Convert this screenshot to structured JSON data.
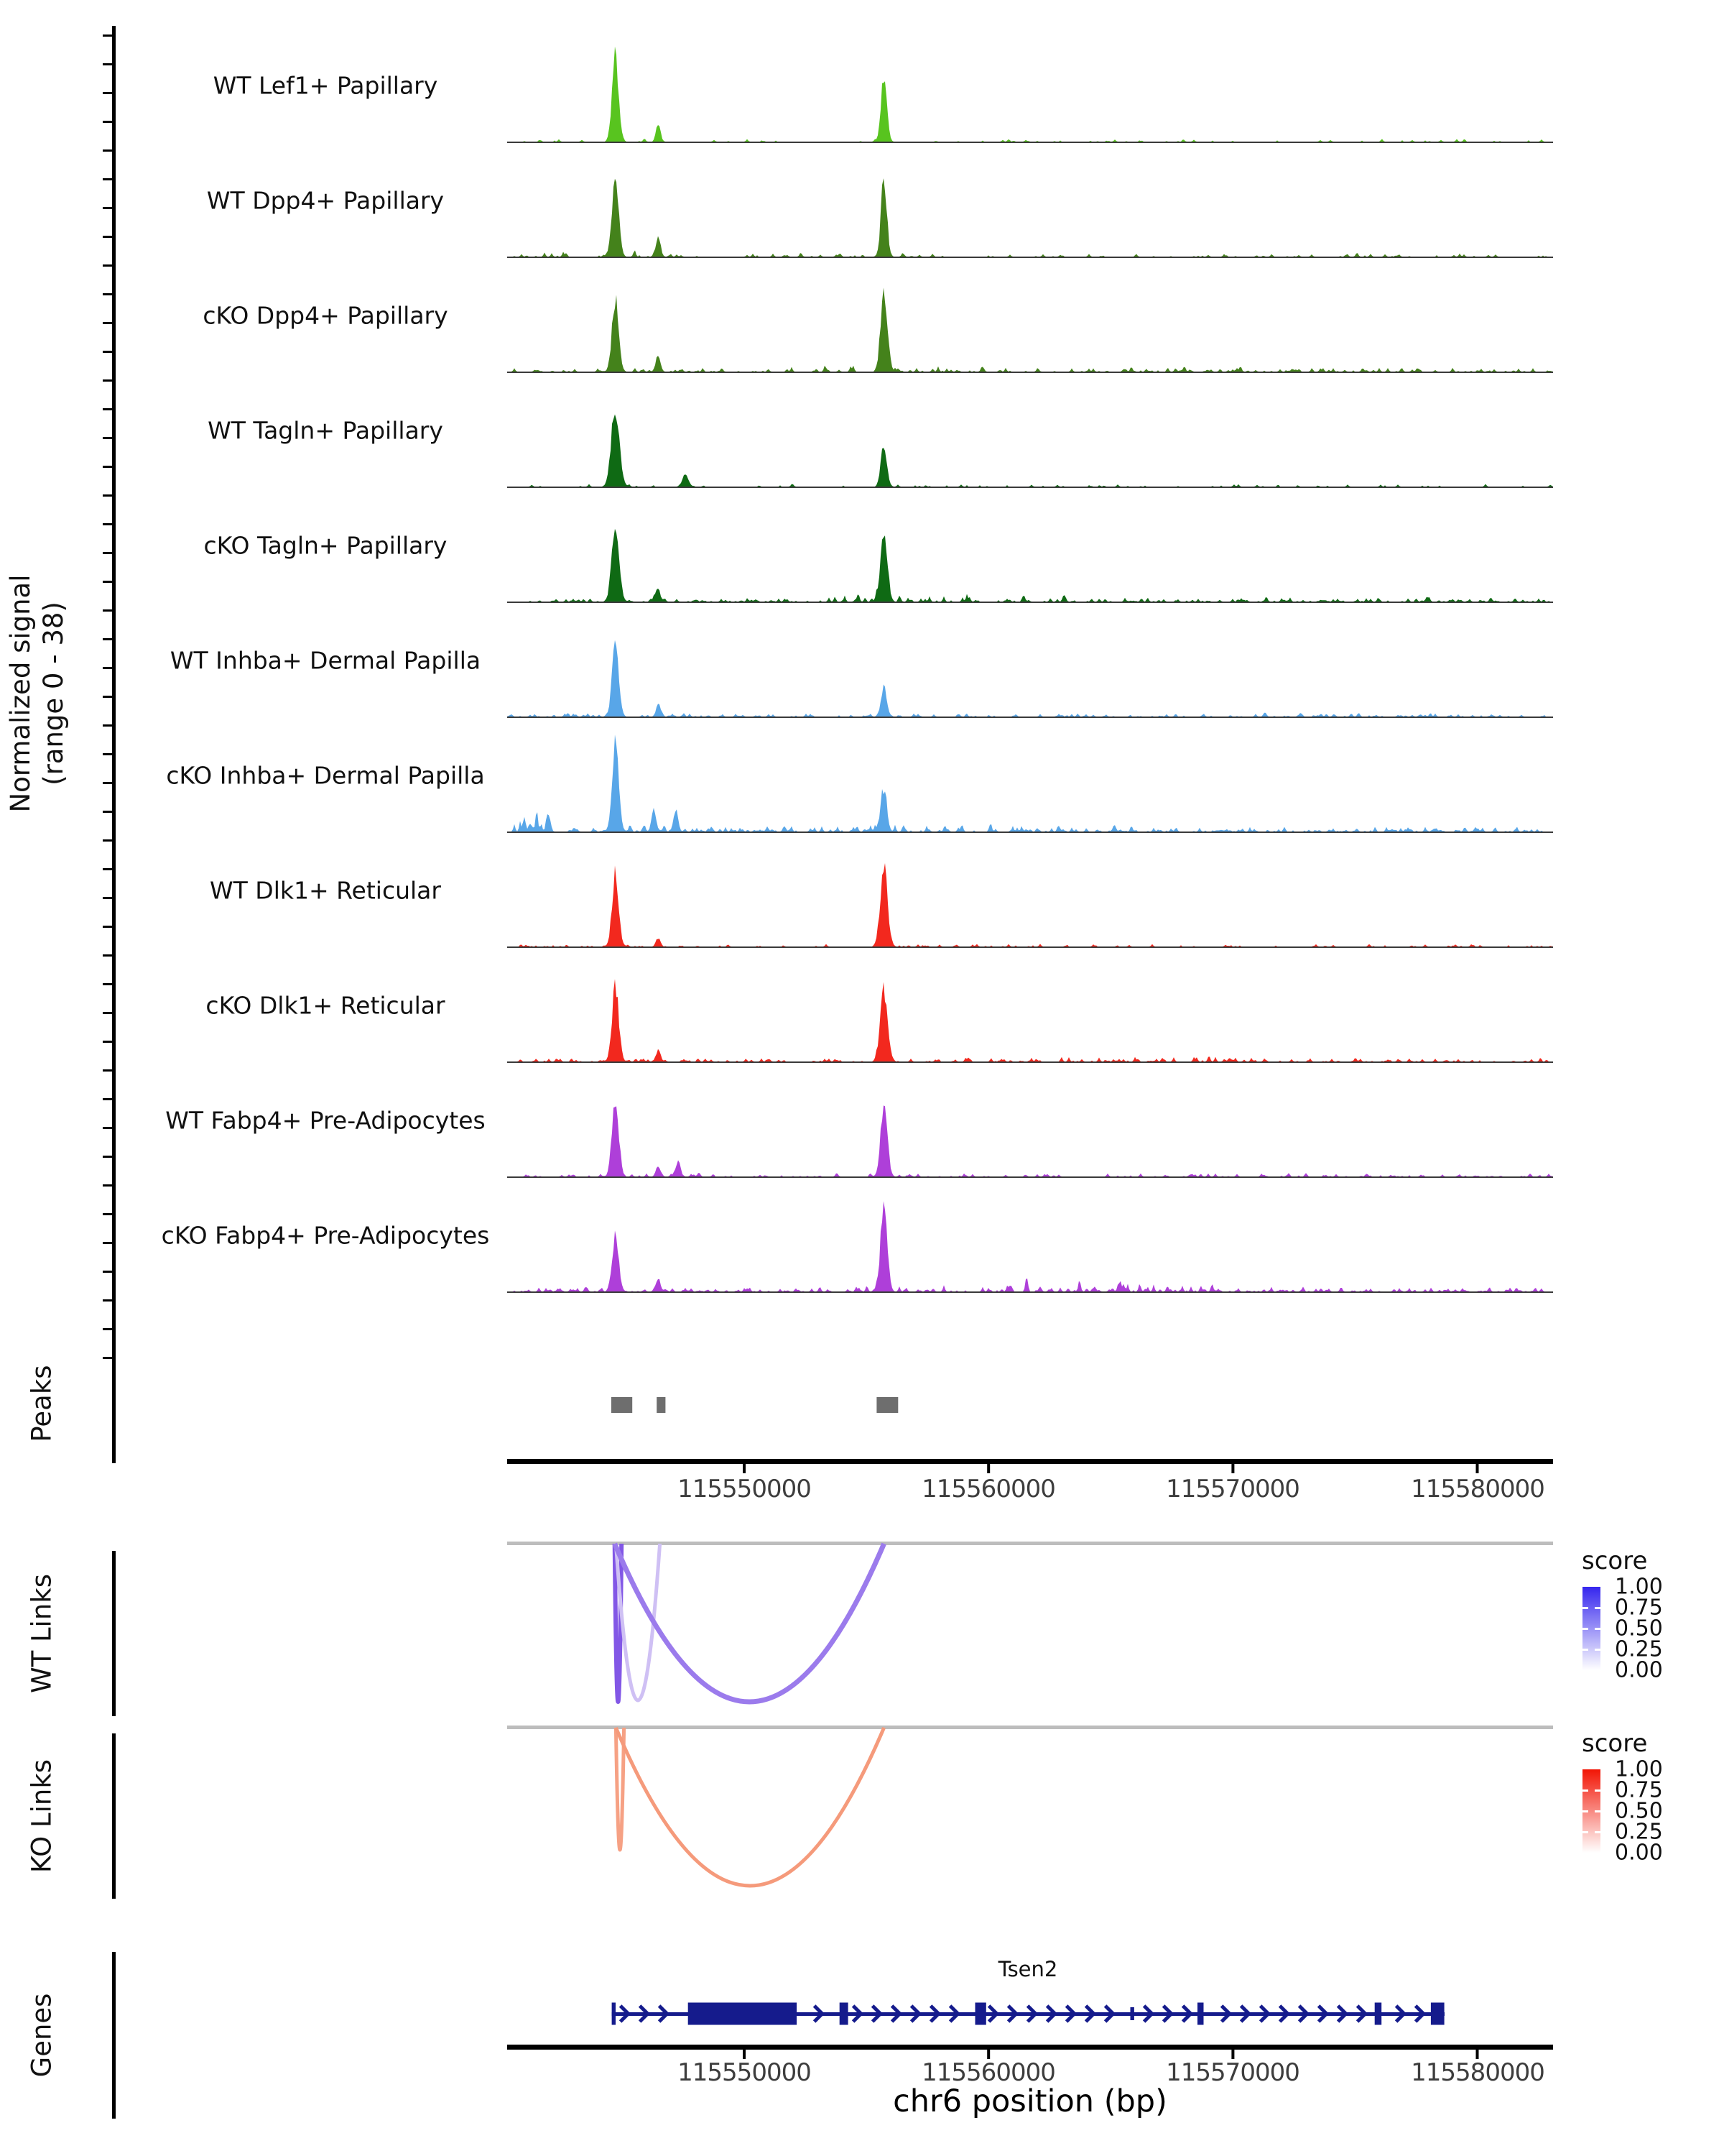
{
  "y_axis": {
    "title_line1": "Normalized signal",
    "title_line2": "(range 0 - 38)"
  },
  "sections": {
    "peaks": "Peaks",
    "wt_links": "WT Links",
    "ko_links": "KO Links",
    "genes": "Genes"
  },
  "x_axis": {
    "label": "chr6 position (bp)"
  },
  "legends": {
    "wt": {
      "title": "score",
      "labels": [
        "1.00",
        "0.75",
        "0.50",
        "0.25",
        "0.00"
      ],
      "top_color": "#3526EE"
    },
    "ko": {
      "title": "score",
      "labels": [
        "1.00",
        "0.75",
        "0.50",
        "0.25",
        "0.00"
      ],
      "top_color": "#F21505"
    }
  },
  "chart_data": {
    "type": "area",
    "title": "",
    "xlabel": "chr6 position (bp)",
    "ylabel": "Normalized signal (range 0 - 38)",
    "y_range": [
      0,
      38
    ],
    "region": {
      "start": 115540300,
      "end": 115583100
    },
    "axis_ticks": [
      {
        "bp": 115550000,
        "label": "115550000"
      },
      {
        "bp": 115560000,
        "label": "115560000"
      },
      {
        "bp": 115570000,
        "label": "115570000"
      },
      {
        "bp": 115580000,
        "label": "115580000"
      }
    ],
    "tracks": [
      {
        "label": "WT Lef1+ Papillary",
        "color": "#58C41F",
        "seed": 101,
        "peaks": [
          {
            "bp": 115544730,
            "h": 118,
            "sigma": 4.5
          },
          {
            "bp": 115546480,
            "h": 26,
            "sigma": 3
          },
          {
            "bp": 115555720,
            "h": 92,
            "sigma": 4
          }
        ],
        "noise": {
          "level": 5,
          "density": 0.12
        },
        "clusters": []
      },
      {
        "label": "WT Dpp4+ Papillary",
        "color": "#44821B",
        "seed": 198,
        "peaks": [
          {
            "bp": 115544730,
            "h": 112,
            "sigma": 4.5
          },
          {
            "bp": 115546480,
            "h": 30,
            "sigma": 3
          },
          {
            "bp": 115555720,
            "h": 108,
            "sigma": 4
          }
        ],
        "noise": {
          "level": 6,
          "density": 0.16
        },
        "clusters": [
          {
            "bp": 115544000,
            "span": 1500,
            "boost": 1.5
          }
        ]
      },
      {
        "label": "cKO Dpp4+ Papillary",
        "color": "#44821B",
        "seed": 295,
        "peaks": [
          {
            "bp": 115544730,
            "h": 100,
            "sigma": 4.5
          },
          {
            "bp": 115546480,
            "h": 24,
            "sigma": 3
          },
          {
            "bp": 115555720,
            "h": 115,
            "sigma": 4.5
          }
        ],
        "noise": {
          "level": 7,
          "density": 0.3
        },
        "clusters": [
          {
            "bp": 115555000,
            "span": 2500,
            "boost": 1.2
          }
        ]
      },
      {
        "label": "WT Tagln+ Papillary",
        "color": "#0F6A14",
        "seed": 392,
        "peaks": [
          {
            "bp": 115544730,
            "h": 112,
            "sigma": 5.5
          },
          {
            "bp": 115547600,
            "h": 18,
            "sigma": 4
          },
          {
            "bp": 115555720,
            "h": 60,
            "sigma": 4
          }
        ],
        "noise": {
          "level": 5,
          "density": 0.15
        },
        "clusters": []
      },
      {
        "label": "cKO Tagln+ Papillary",
        "color": "#0F6A14",
        "seed": 489,
        "peaks": [
          {
            "bp": 115544730,
            "h": 108,
            "sigma": 5
          },
          {
            "bp": 115546480,
            "h": 18,
            "sigma": 3
          },
          {
            "bp": 115555720,
            "h": 95,
            "sigma": 4.5
          }
        ],
        "noise": {
          "level": 8,
          "density": 0.33
        },
        "clusters": [
          {
            "bp": 115557500,
            "span": 2500,
            "boost": 1.2
          }
        ]
      },
      {
        "label": "WT Inhba+ Dermal Papilla",
        "color": "#58A6E8",
        "seed": 586,
        "peaks": [
          {
            "bp": 115544730,
            "h": 100,
            "sigma": 4.5
          },
          {
            "bp": 115546480,
            "h": 16,
            "sigma": 3
          },
          {
            "bp": 115555720,
            "h": 38,
            "sigma": 4
          }
        ],
        "noise": {
          "level": 6,
          "density": 0.3
        },
        "clusters": []
      },
      {
        "label": "cKO Inhba+ Dermal Papilla",
        "color": "#58A6E8",
        "seed": 683,
        "peaks": [
          {
            "bp": 115544730,
            "h": 118,
            "sigma": 4.5
          },
          {
            "bp": 115546300,
            "h": 30,
            "sigma": 3
          },
          {
            "bp": 115547200,
            "h": 32,
            "sigma": 3
          },
          {
            "bp": 115555720,
            "h": 55,
            "sigma": 4
          }
        ],
        "noise": {
          "level": 9,
          "density": 0.38
        },
        "clusters": [
          {
            "bp": 115541300,
            "span": 900,
            "boost": 3.2
          },
          {
            "bp": 115558000,
            "span": 3000,
            "boost": 0.8
          }
        ]
      },
      {
        "label": "WT Dlk1+ Reticular",
        "color": "#F2281E",
        "seed": 780,
        "peaks": [
          {
            "bp": 115544730,
            "h": 100,
            "sigma": 4.5
          },
          {
            "bp": 115546480,
            "h": 12,
            "sigma": 3
          },
          {
            "bp": 115555720,
            "h": 110,
            "sigma": 5
          }
        ],
        "noise": {
          "level": 5,
          "density": 0.22
        },
        "clusters": []
      },
      {
        "label": "cKO Dlk1+ Reticular",
        "color": "#F2281E",
        "seed": 877,
        "peaks": [
          {
            "bp": 115544730,
            "h": 108,
            "sigma": 4.5
          },
          {
            "bp": 115546480,
            "h": 16,
            "sigma": 3
          },
          {
            "bp": 115555720,
            "h": 100,
            "sigma": 5
          }
        ],
        "noise": {
          "level": 6,
          "density": 0.3
        },
        "clusters": [
          {
            "bp": 115566000,
            "span": 4000,
            "boost": 0.7
          }
        ]
      },
      {
        "label": "WT Fabp4+ Pre-Adipocytes",
        "color": "#AE3FD9",
        "seed": 974,
        "peaks": [
          {
            "bp": 115544730,
            "h": 108,
            "sigma": 4.5
          },
          {
            "bp": 115546480,
            "h": 14,
            "sigma": 3
          },
          {
            "bp": 115547300,
            "h": 22,
            "sigma": 3
          },
          {
            "bp": 115555720,
            "h": 105,
            "sigma": 4.5
          }
        ],
        "noise": {
          "level": 6,
          "density": 0.25
        },
        "clusters": []
      },
      {
        "label": "cKO Fabp4+ Pre-Adipocytes",
        "color": "#AE3FD9",
        "seed": 1071,
        "peaks": [
          {
            "bp": 115544730,
            "h": 75,
            "sigma": 4.5
          },
          {
            "bp": 115546480,
            "h": 18,
            "sigma": 3
          },
          {
            "bp": 115555720,
            "h": 118,
            "sigma": 4.5
          }
        ],
        "noise": {
          "level": 7,
          "density": 0.35
        },
        "clusters": [
          {
            "bp": 115563500,
            "span": 4500,
            "boost": 2.0
          }
        ]
      }
    ],
    "peak_boxes": [
      {
        "start": 115544560,
        "end": 115545420
      },
      {
        "start": 115546420,
        "end": 115546780
      },
      {
        "start": 115555420,
        "end": 115556300
      }
    ],
    "links": {
      "wt": [
        {
          "x1": 115544700,
          "x2": 115544980,
          "score": 0.7,
          "color": "#8257E6",
          "width": 6,
          "depth": 220
        },
        {
          "x1": 115544750,
          "x2": 115546550,
          "score": 0.28,
          "color": "#CFC0F4",
          "width": 5,
          "depth": 218
        },
        {
          "x1": 115544700,
          "x2": 115555720,
          "score": 0.55,
          "color": "#9B7BEC",
          "width": 7,
          "depth": 220
        }
      ],
      "ko": [
        {
          "x1": 115544750,
          "x2": 115545080,
          "score": 0.45,
          "color": "#F6A184",
          "width": 5,
          "depth": 170
        },
        {
          "x1": 115544750,
          "x2": 115555720,
          "score": 0.42,
          "color": "#F59A7B",
          "width": 5,
          "depth": 220
        }
      ]
    },
    "gene": {
      "name": "Tsen2",
      "color": "#151B8C",
      "start": 115544580,
      "end": 115578660,
      "exons": [
        {
          "start": 115544580,
          "end": 115544740,
          "h": 31
        },
        {
          "start": 115547700,
          "end": 115552150,
          "h": 31
        },
        {
          "start": 115553900,
          "end": 115554250,
          "h": 31
        },
        {
          "start": 115559450,
          "end": 115559900,
          "h": 31
        },
        {
          "start": 115565800,
          "end": 115565960,
          "h": 18
        },
        {
          "start": 115568550,
          "end": 115568800,
          "h": 31
        },
        {
          "start": 115575800,
          "end": 115576080,
          "h": 31
        },
        {
          "start": 115578100,
          "end": 115578650,
          "h": 31
        }
      ]
    },
    "colors": {
      "peak_box": "#6E6E6E",
      "baseline": "#3a3a3a",
      "axis": "#000000",
      "link_line": "#BDBDBD"
    }
  }
}
